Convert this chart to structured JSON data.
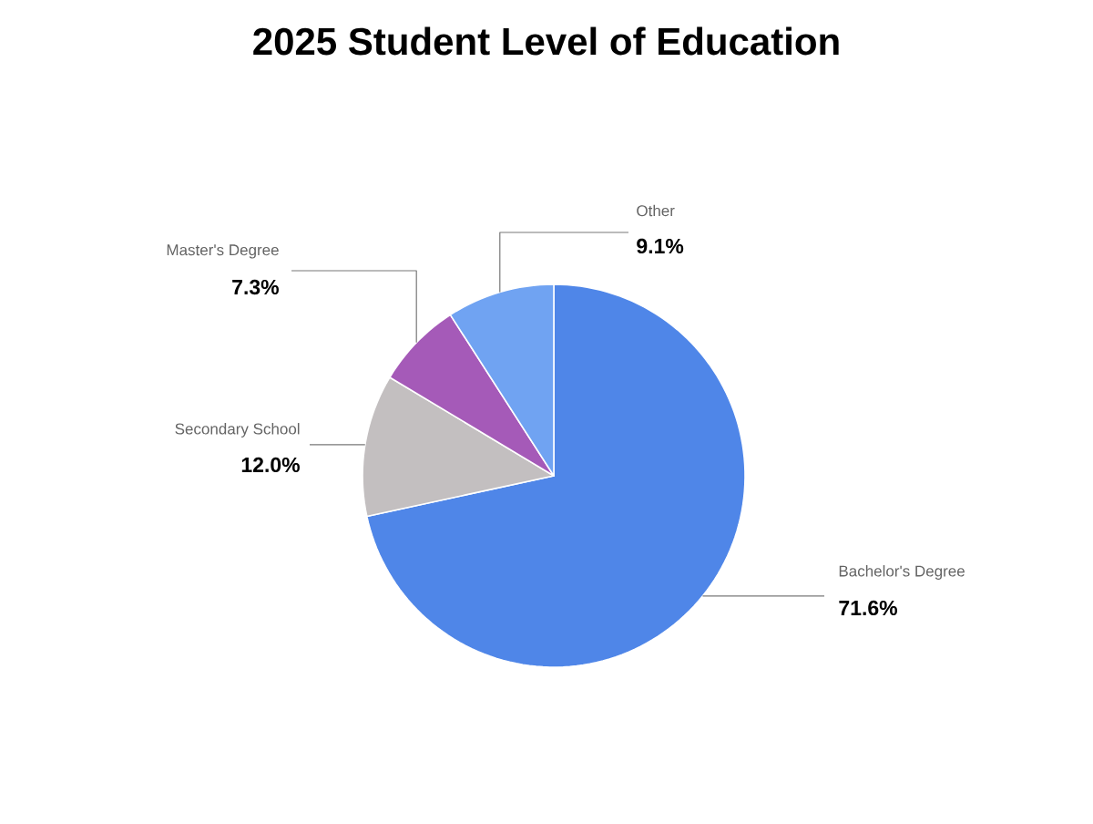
{
  "chart_data": {
    "type": "pie",
    "title": "2025 Student Level of Education",
    "categories": [
      "Bachelor's Degree",
      "Secondary School",
      "Master's Degree",
      "Other"
    ],
    "values": [
      71.6,
      12.0,
      7.3,
      9.1
    ],
    "colors": [
      "#4f86e8",
      "#c3bfc0",
      "#a55ab8",
      "#70a3f2"
    ],
    "value_labels": [
      "71.6%",
      "12.0%",
      "7.3%",
      "9.1%"
    ]
  }
}
